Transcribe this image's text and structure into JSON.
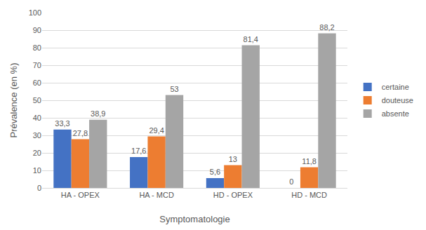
{
  "chart_data": {
    "type": "bar",
    "x_label": "Symptomatologie",
    "y_label": "Prévalence (en %)",
    "categories": [
      "HA - OPEX",
      "HA - MCD",
      "HD - OPEX",
      "HD - MCD"
    ],
    "series": [
      {
        "name": "certaine",
        "color": "#4472c4",
        "values": [
          33.3,
          17.6,
          5.6,
          0
        ],
        "value_labels": [
          "33,3",
          "17,6",
          "5,6",
          "0"
        ]
      },
      {
        "name": "douteuse",
        "color": "#ed7d31",
        "values": [
          27.8,
          29.4,
          13,
          11.8
        ],
        "value_labels": [
          "27,8",
          "29,4",
          "13",
          "11,8"
        ]
      },
      {
        "name": "absente",
        "color": "#a5a5a5",
        "values": [
          38.9,
          53,
          81.4,
          88.2
        ],
        "value_labels": [
          "38,9",
          "53",
          "81,4",
          "88,2"
        ]
      }
    ],
    "ylim": [
      0,
      100
    ],
    "yticks": [
      0,
      10,
      20,
      30,
      40,
      50,
      60,
      70,
      80,
      90,
      100
    ],
    "grid": true,
    "legend": "right",
    "data_labels": true
  }
}
